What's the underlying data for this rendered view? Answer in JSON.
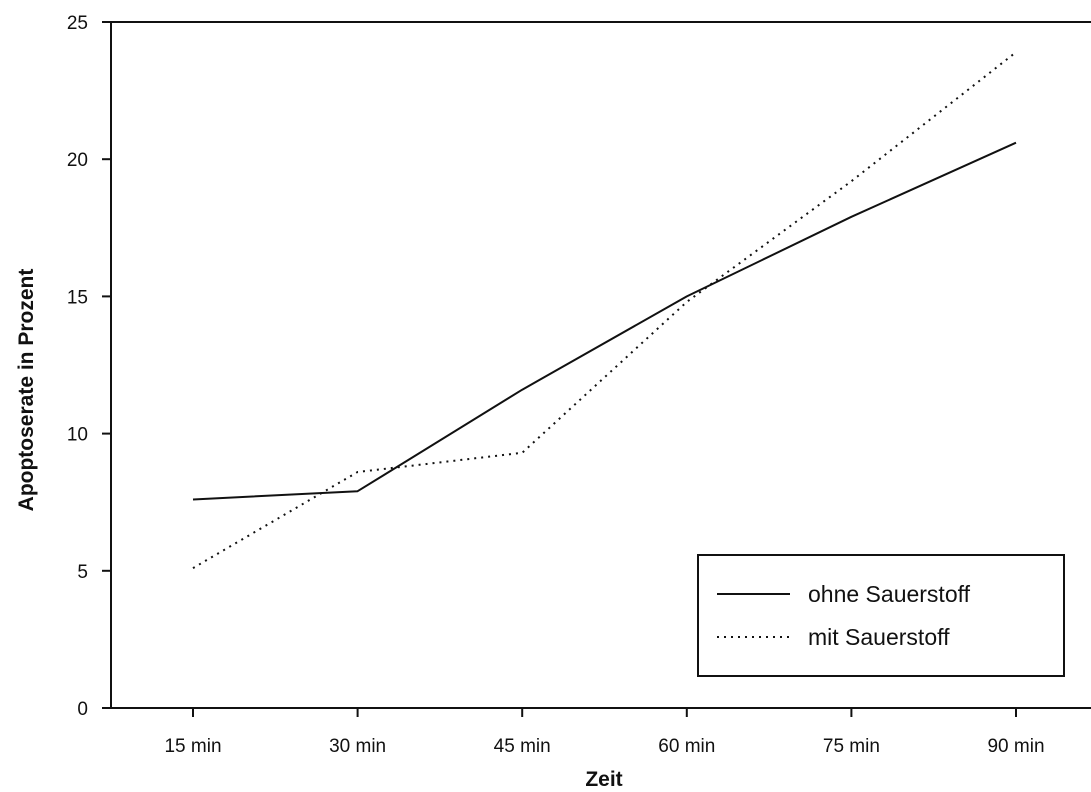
{
  "chart_data": {
    "type": "line",
    "title": "",
    "xlabel": "Zeit",
    "ylabel": "Apoptoserate in Prozent",
    "categories": [
      "15 min",
      "30 min",
      "45 min",
      "60 min",
      "75 min",
      "90 min"
    ],
    "ylim": [
      0,
      25
    ],
    "yticks": [
      0,
      5,
      10,
      15,
      20,
      25
    ],
    "grid": false,
    "legend_position": "bottom-right",
    "series": [
      {
        "name": "ohne Sauerstoff",
        "style": "solid",
        "color": "#111111",
        "values": [
          7.6,
          7.9,
          11.6,
          15.0,
          17.9,
          20.6
        ]
      },
      {
        "name": "mit Sauerstoff",
        "style": "dotted",
        "color": "#111111",
        "values": [
          5.1,
          8.6,
          9.3,
          14.8,
          19.2,
          23.9
        ]
      }
    ]
  }
}
